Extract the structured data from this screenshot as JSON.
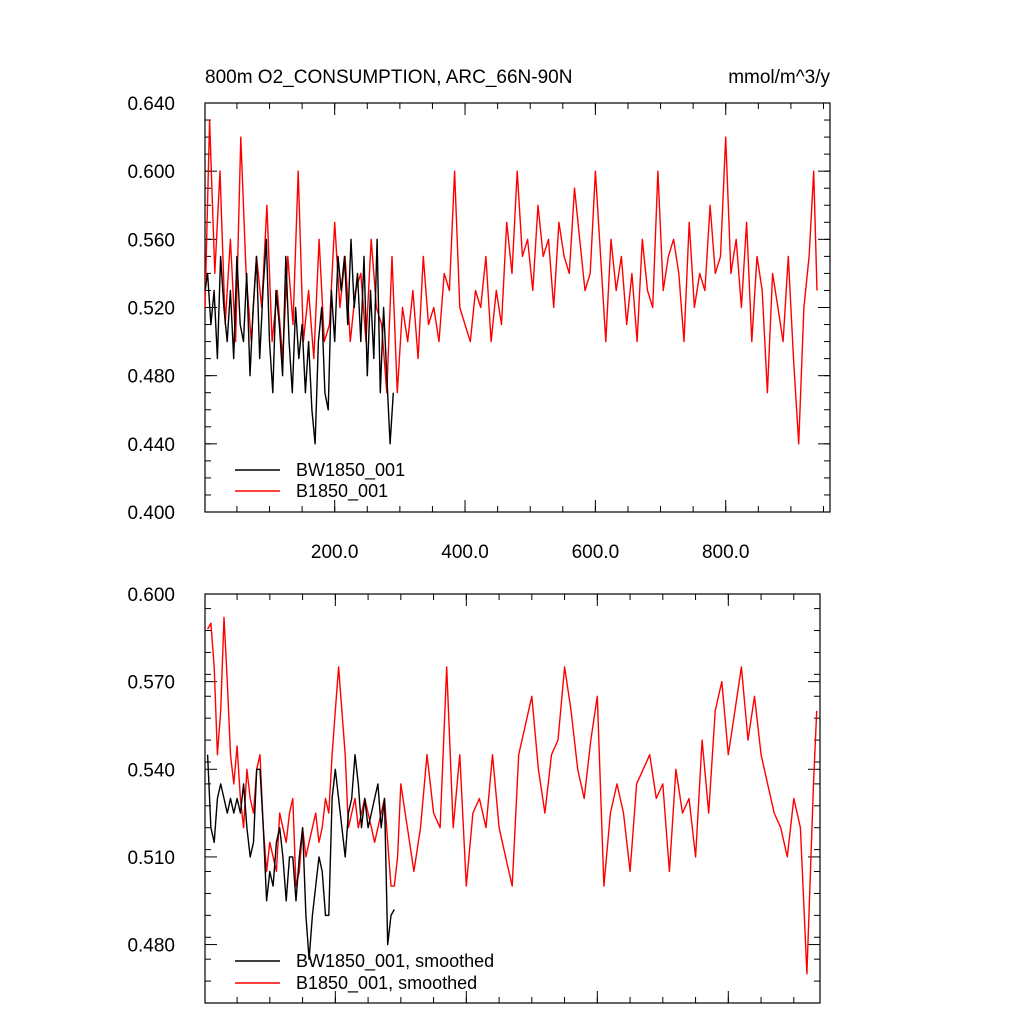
{
  "chart_data": [
    {
      "type": "line",
      "title": "800m O2_CONSUMPTION, ARC_66N-90N",
      "units": "mmol/m^3/y",
      "xlim": [
        1,
        960
      ],
      "ylim": [
        0.4,
        0.64
      ],
      "x_ticks": [
        200,
        400,
        600,
        800
      ],
      "x_tick_labels": [
        "200.0",
        "400.0",
        "600.0",
        "800.0"
      ],
      "y_ticks": [
        0.4,
        0.44,
        0.48,
        0.52,
        0.56,
        0.6,
        0.64
      ],
      "y_tick_labels": [
        "0.400",
        "0.440",
        "0.480",
        "0.520",
        "0.560",
        "0.600",
        "0.640"
      ],
      "legend_position": "bottom-left",
      "series": [
        {
          "name": "BW1850_001",
          "color": "#000000",
          "x": [
            1,
            5,
            10,
            15,
            20,
            25,
            30,
            35,
            40,
            45,
            50,
            55,
            60,
            65,
            70,
            75,
            80,
            85,
            90,
            95,
            100,
            105,
            110,
            115,
            120,
            125,
            130,
            135,
            140,
            145,
            150,
            155,
            160,
            165,
            170,
            175,
            180,
            185,
            190,
            195,
            200,
            205,
            210,
            215,
            220,
            225,
            230,
            235,
            240,
            245,
            250,
            255,
            260,
            265,
            270,
            275,
            280,
            285,
            290
          ],
          "values": [
            0.53,
            0.54,
            0.51,
            0.53,
            0.49,
            0.55,
            0.52,
            0.5,
            0.53,
            0.49,
            0.55,
            0.51,
            0.5,
            0.54,
            0.48,
            0.52,
            0.55,
            0.49,
            0.53,
            0.56,
            0.5,
            0.47,
            0.53,
            0.51,
            0.48,
            0.55,
            0.5,
            0.47,
            0.52,
            0.49,
            0.51,
            0.47,
            0.5,
            0.46,
            0.44,
            0.5,
            0.52,
            0.47,
            0.46,
            0.53,
            0.5,
            0.55,
            0.53,
            0.55,
            0.51,
            0.56,
            0.52,
            0.54,
            0.5,
            0.55,
            0.48,
            0.53,
            0.49,
            0.56,
            0.47,
            0.52,
            0.48,
            0.44,
            0.47
          ]
        },
        {
          "name": "B1850_001",
          "color": "#ff0000",
          "x": [
            1,
            8,
            16,
            24,
            32,
            40,
            48,
            56,
            64,
            72,
            80,
            88,
            96,
            104,
            112,
            120,
            128,
            136,
            144,
            152,
            160,
            168,
            176,
            184,
            192,
            200,
            208,
            216,
            224,
            232,
            240,
            248,
            256,
            264,
            272,
            280,
            288,
            296,
            304,
            312,
            320,
            328,
            336,
            344,
            352,
            360,
            368,
            376,
            384,
            392,
            400,
            408,
            416,
            424,
            432,
            440,
            448,
            456,
            464,
            472,
            480,
            488,
            496,
            504,
            512,
            520,
            528,
            536,
            544,
            552,
            560,
            568,
            576,
            584,
            592,
            600,
            608,
            616,
            624,
            632,
            640,
            648,
            656,
            664,
            672,
            680,
            688,
            696,
            704,
            712,
            720,
            728,
            736,
            744,
            752,
            760,
            768,
            776,
            784,
            792,
            800,
            808,
            816,
            824,
            832,
            840,
            848,
            856,
            864,
            872,
            880,
            888,
            896,
            904,
            912,
            920,
            928,
            935,
            940
          ],
          "values": [
            0.52,
            0.63,
            0.54,
            0.6,
            0.51,
            0.56,
            0.5,
            0.62,
            0.54,
            0.5,
            0.55,
            0.52,
            0.58,
            0.5,
            0.53,
            0.49,
            0.55,
            0.51,
            0.6,
            0.5,
            0.53,
            0.49,
            0.56,
            0.5,
            0.51,
            0.57,
            0.52,
            0.55,
            0.5,
            0.53,
            0.54,
            0.5,
            0.56,
            0.52,
            0.51,
            0.47,
            0.55,
            0.47,
            0.52,
            0.5,
            0.53,
            0.49,
            0.55,
            0.51,
            0.52,
            0.5,
            0.54,
            0.53,
            0.6,
            0.52,
            0.51,
            0.5,
            0.53,
            0.52,
            0.55,
            0.5,
            0.53,
            0.51,
            0.57,
            0.54,
            0.6,
            0.55,
            0.56,
            0.53,
            0.58,
            0.55,
            0.56,
            0.52,
            0.57,
            0.55,
            0.54,
            0.59,
            0.56,
            0.53,
            0.54,
            0.6,
            0.55,
            0.5,
            0.56,
            0.53,
            0.55,
            0.51,
            0.54,
            0.5,
            0.56,
            0.53,
            0.52,
            0.6,
            0.53,
            0.55,
            0.56,
            0.54,
            0.5,
            0.57,
            0.52,
            0.54,
            0.53,
            0.58,
            0.54,
            0.55,
            0.62,
            0.54,
            0.56,
            0.52,
            0.57,
            0.5,
            0.55,
            0.53,
            0.47,
            0.54,
            0.52,
            0.5,
            0.55,
            0.49,
            0.44,
            0.52,
            0.55,
            0.6,
            0.53
          ]
        }
      ]
    },
    {
      "type": "line",
      "xlim": [
        1,
        940
      ],
      "ylim": [
        0.46,
        0.6
      ],
      "x_ticks": [
        200,
        400,
        600,
        800
      ],
      "y_ticks": [
        0.48,
        0.51,
        0.54,
        0.57,
        0.6
      ],
      "y_tick_labels": [
        "0.480",
        "0.510",
        "0.540",
        "0.570",
        "0.600"
      ],
      "legend_position": "bottom-left",
      "series": [
        {
          "name": "BW1850_001, smoothed",
          "color": "#000000",
          "x": [
            5,
            10,
            15,
            20,
            25,
            30,
            35,
            40,
            45,
            50,
            55,
            60,
            65,
            70,
            75,
            80,
            85,
            90,
            95,
            100,
            105,
            110,
            115,
            120,
            125,
            130,
            135,
            140,
            145,
            150,
            155,
            160,
            165,
            170,
            175,
            180,
            185,
            190,
            195,
            200,
            205,
            210,
            215,
            220,
            225,
            230,
            235,
            240,
            245,
            250,
            255,
            260,
            265,
            270,
            275,
            280,
            285,
            290
          ],
          "values": [
            0.545,
            0.52,
            0.515,
            0.53,
            0.535,
            0.53,
            0.525,
            0.53,
            0.525,
            0.53,
            0.525,
            0.535,
            0.52,
            0.51,
            0.515,
            0.54,
            0.54,
            0.52,
            0.495,
            0.505,
            0.5,
            0.515,
            0.52,
            0.51,
            0.495,
            0.51,
            0.51,
            0.495,
            0.51,
            0.52,
            0.49,
            0.475,
            0.49,
            0.5,
            0.51,
            0.505,
            0.49,
            0.49,
            0.53,
            0.54,
            0.53,
            0.52,
            0.51,
            0.525,
            0.53,
            0.545,
            0.535,
            0.52,
            0.53,
            0.52,
            0.525,
            0.53,
            0.535,
            0.52,
            0.53,
            0.48,
            0.49,
            0.492
          ]
        },
        {
          "name": "B1850_001, smoothed",
          "color": "#ff0000",
          "x": [
            5,
            10,
            15,
            20,
            25,
            30,
            35,
            40,
            45,
            50,
            55,
            60,
            65,
            70,
            75,
            80,
            85,
            90,
            95,
            100,
            105,
            110,
            115,
            120,
            125,
            130,
            135,
            140,
            145,
            150,
            155,
            160,
            165,
            170,
            175,
            180,
            185,
            190,
            195,
            200,
            205,
            210,
            215,
            220,
            225,
            230,
            235,
            240,
            245,
            250,
            255,
            260,
            265,
            270,
            275,
            280,
            285,
            290,
            295,
            300,
            310,
            320,
            330,
            340,
            350,
            360,
            370,
            380,
            390,
            400,
            410,
            420,
            430,
            440,
            450,
            460,
            470,
            480,
            490,
            500,
            510,
            520,
            530,
            540,
            550,
            560,
            570,
            580,
            590,
            600,
            610,
            620,
            630,
            640,
            650,
            660,
            670,
            680,
            690,
            700,
            710,
            720,
            730,
            740,
            750,
            760,
            770,
            780,
            790,
            800,
            810,
            820,
            830,
            840,
            850,
            860,
            870,
            880,
            890,
            900,
            910,
            920,
            930,
            935
          ],
          "values": [
            0.588,
            0.59,
            0.575,
            0.545,
            0.56,
            0.592,
            0.57,
            0.545,
            0.535,
            0.548,
            0.53,
            0.52,
            0.54,
            0.53,
            0.525,
            0.54,
            0.545,
            0.52,
            0.505,
            0.515,
            0.51,
            0.505,
            0.525,
            0.52,
            0.515,
            0.525,
            0.53,
            0.5,
            0.505,
            0.52,
            0.51,
            0.515,
            0.52,
            0.525,
            0.515,
            0.52,
            0.53,
            0.525,
            0.545,
            0.56,
            0.575,
            0.56,
            0.545,
            0.52,
            0.525,
            0.53,
            0.52,
            0.525,
            0.53,
            0.525,
            0.52,
            0.515,
            0.52,
            0.525,
            0.53,
            0.515,
            0.5,
            0.5,
            0.51,
            0.535,
            0.52,
            0.505,
            0.52,
            0.545,
            0.525,
            0.52,
            0.575,
            0.52,
            0.545,
            0.5,
            0.525,
            0.53,
            0.52,
            0.545,
            0.52,
            0.51,
            0.5,
            0.545,
            0.555,
            0.565,
            0.54,
            0.525,
            0.545,
            0.55,
            0.575,
            0.56,
            0.54,
            0.53,
            0.55,
            0.565,
            0.5,
            0.525,
            0.535,
            0.525,
            0.505,
            0.535,
            0.54,
            0.545,
            0.53,
            0.535,
            0.505,
            0.54,
            0.525,
            0.53,
            0.51,
            0.55,
            0.525,
            0.56,
            0.57,
            0.545,
            0.56,
            0.575,
            0.55,
            0.565,
            0.545,
            0.535,
            0.525,
            0.52,
            0.51,
            0.53,
            0.52,
            0.47,
            0.535,
            0.56
          ]
        }
      ]
    }
  ]
}
